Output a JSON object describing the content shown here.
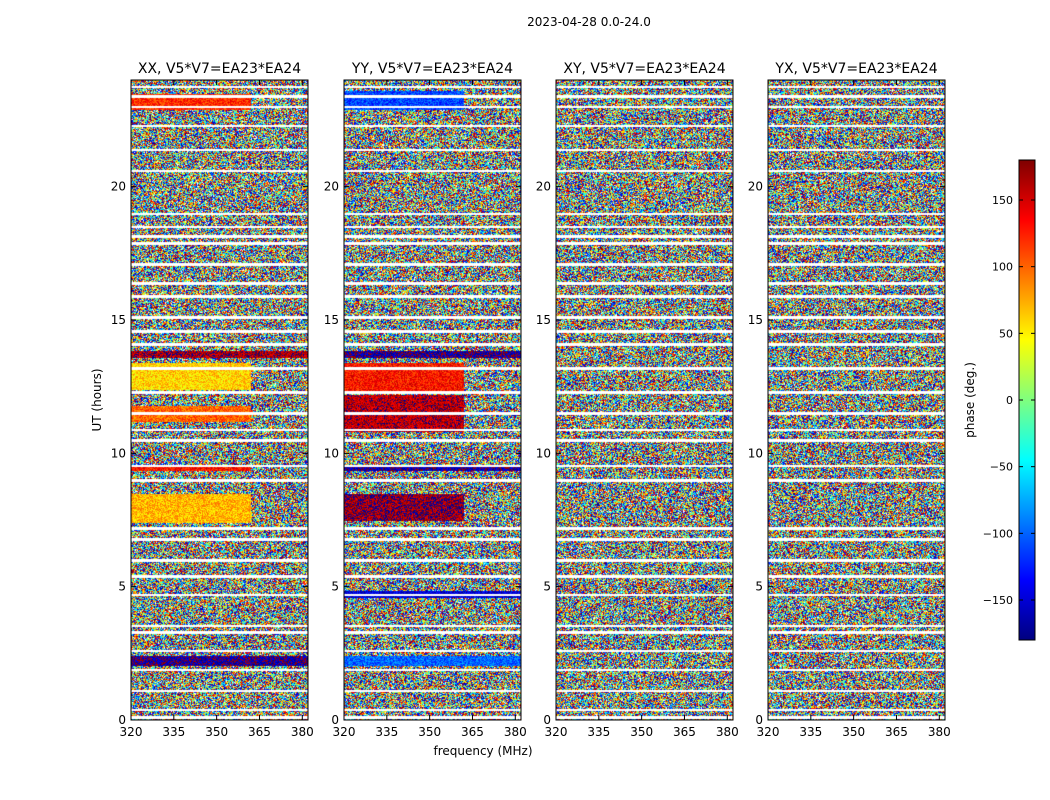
{
  "figure_title": "2023-04-28 0.0-24.0",
  "chart_data": {
    "type": "heatmap",
    "suptitle": "2023-04-28 0.0-24.0",
    "xlabel": "frequency (MHz)",
    "ylabel": "UT (hours)",
    "xlim": [
      320,
      382
    ],
    "ylim": [
      0,
      24
    ],
    "xticks": [
      320,
      335,
      350,
      365,
      380
    ],
    "yticks": [
      0,
      5,
      10,
      15,
      20
    ],
    "colorbar": {
      "label": "phase (deg.)",
      "range": [
        -180,
        180
      ],
      "ticks": [
        -150,
        -100,
        -50,
        0,
        50,
        100,
        150
      ],
      "tick_labels": [
        "−150",
        "−100",
        "−50",
        "0",
        "50",
        "100",
        "150"
      ],
      "colormap": "jet",
      "colors": [
        "#00007f",
        "#0000ff",
        "#007fff",
        "#00ffff",
        "#7fff7f",
        "#ffff00",
        "#ff7f00",
        "#ff0000",
        "#7f0000"
      ]
    },
    "panels": [
      {
        "title": "XX, V5*V7=EA23*EA24",
        "coherent_bands": [
          {
            "t0": 22.9,
            "t1": 23.5,
            "f_end": 362,
            "phase": 120
          },
          {
            "t0": 13.6,
            "t1": 13.85,
            "f_end": 382,
            "phase": 165
          },
          {
            "t0": 12.4,
            "t1": 13.4,
            "f_end": 362,
            "phase": 60
          },
          {
            "t0": 11.2,
            "t1": 11.8,
            "f_end": 362,
            "phase": 100
          },
          {
            "t0": 9.35,
            "t1": 9.6,
            "f_end": 362,
            "phase": 130
          },
          {
            "t0": 7.4,
            "t1": 8.5,
            "f_end": 362,
            "phase": 70
          },
          {
            "t0": 2.05,
            "t1": 2.4,
            "f_end": 382,
            "phase": -170
          }
        ]
      },
      {
        "title": "YY, V5*V7=EA23*EA24",
        "coherent_bands": [
          {
            "t0": 22.9,
            "t1": 23.6,
            "f_end": 362,
            "phase": -110
          },
          {
            "t0": 13.6,
            "t1": 13.85,
            "f_end": 382,
            "phase": -170
          },
          {
            "t0": 12.3,
            "t1": 13.4,
            "f_end": 362,
            "phase": 130
          },
          {
            "t0": 10.8,
            "t1": 12.2,
            "f_end": 362,
            "phase": 160
          },
          {
            "t0": 9.35,
            "t1": 9.6,
            "f_end": 382,
            "phase": -165
          },
          {
            "t0": 7.5,
            "t1": 8.5,
            "f_end": 362,
            "phase": 170
          },
          {
            "t0": 4.6,
            "t1": 4.85,
            "f_end": 382,
            "phase": -150
          },
          {
            "t0": 2.05,
            "t1": 2.4,
            "f_end": 382,
            "phase": -100
          }
        ]
      },
      {
        "title": "XY, V5*V7=EA23*EA24",
        "coherent_bands": []
      },
      {
        "title": "YX, V5*V7=EA23*EA24",
        "coherent_bands": []
      }
    ],
    "flagged_times": [
      0.1,
      0.4,
      1.1,
      1.9,
      2.6,
      3.3,
      3.55,
      4.7,
      5.4,
      6.0,
      6.8,
      7.2,
      9.0,
      9.55,
      10.5,
      10.9,
      11.5,
      12.3,
      13.2,
      14.1,
      14.6,
      15.1,
      15.9,
      16.4,
      17.1,
      17.9,
      18.15,
      18.5,
      19.0,
      20.6,
      21.4,
      22.3,
      23.0,
      23.4,
      23.75
    ]
  }
}
